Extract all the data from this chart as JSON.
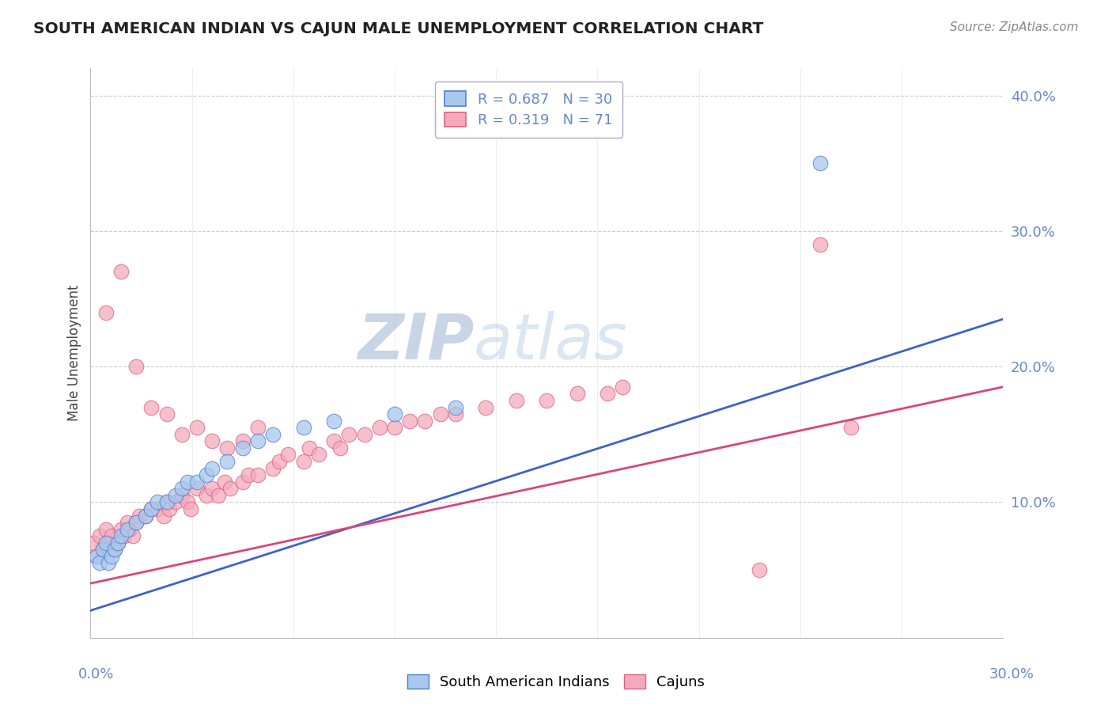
{
  "title": "SOUTH AMERICAN INDIAN VS CAJUN MALE UNEMPLOYMENT CORRELATION CHART",
  "source": "Source: ZipAtlas.com",
  "ylabel": "Male Unemployment",
  "xlim": [
    0.0,
    0.3
  ],
  "ylim": [
    0.0,
    0.42
  ],
  "ytick_vals": [
    0.1,
    0.2,
    0.3,
    0.4
  ],
  "ytick_labels": [
    "10.0%",
    "20.0%",
    "30.0%",
    "40.0%"
  ],
  "blue_R": 0.687,
  "blue_N": 30,
  "pink_R": 0.319,
  "pink_N": 71,
  "blue_fill": "#A8C8EE",
  "pink_fill": "#F4AABC",
  "blue_edge": "#5080CC",
  "pink_edge": "#E06080",
  "blue_line": "#4060CC",
  "pink_line": "#DD4477",
  "tick_color": "#6688CC",
  "legend_label_blue": "South American Indians",
  "legend_label_pink": "Cajuns",
  "blue_line_x": [
    0.0,
    0.3
  ],
  "blue_line_y": [
    0.02,
    0.235
  ],
  "pink_line_x": [
    0.0,
    0.3
  ],
  "pink_line_y": [
    0.04,
    0.185
  ],
  "blue_x": [
    0.002,
    0.003,
    0.004,
    0.005,
    0.006,
    0.007,
    0.008,
    0.009,
    0.01,
    0.012,
    0.015,
    0.018,
    0.02,
    0.022,
    0.025,
    0.028,
    0.03,
    0.032,
    0.035,
    0.038,
    0.04,
    0.045,
    0.05,
    0.055,
    0.06,
    0.07,
    0.08,
    0.1,
    0.12,
    0.24
  ],
  "blue_y": [
    0.06,
    0.055,
    0.065,
    0.07,
    0.055,
    0.06,
    0.065,
    0.07,
    0.075,
    0.08,
    0.085,
    0.09,
    0.095,
    0.1,
    0.1,
    0.105,
    0.11,
    0.115,
    0.115,
    0.12,
    0.125,
    0.13,
    0.14,
    0.145,
    0.15,
    0.155,
    0.16,
    0.165,
    0.17,
    0.35
  ],
  "pink_x": [
    0.001,
    0.002,
    0.003,
    0.004,
    0.005,
    0.006,
    0.007,
    0.008,
    0.009,
    0.01,
    0.011,
    0.012,
    0.013,
    0.014,
    0.015,
    0.016,
    0.018,
    0.02,
    0.022,
    0.024,
    0.025,
    0.026,
    0.028,
    0.03,
    0.032,
    0.033,
    0.035,
    0.038,
    0.04,
    0.042,
    0.044,
    0.046,
    0.05,
    0.052,
    0.055,
    0.06,
    0.062,
    0.065,
    0.07,
    0.072,
    0.075,
    0.08,
    0.082,
    0.085,
    0.09,
    0.095,
    0.1,
    0.105,
    0.11,
    0.115,
    0.12,
    0.13,
    0.14,
    0.15,
    0.16,
    0.17,
    0.175,
    0.005,
    0.01,
    0.015,
    0.02,
    0.025,
    0.03,
    0.035,
    0.04,
    0.045,
    0.05,
    0.055,
    0.22,
    0.24,
    0.25
  ],
  "pink_y": [
    0.07,
    0.06,
    0.075,
    0.065,
    0.08,
    0.07,
    0.075,
    0.065,
    0.07,
    0.08,
    0.075,
    0.085,
    0.08,
    0.075,
    0.085,
    0.09,
    0.09,
    0.095,
    0.095,
    0.09,
    0.1,
    0.095,
    0.1,
    0.105,
    0.1,
    0.095,
    0.11,
    0.105,
    0.11,
    0.105,
    0.115,
    0.11,
    0.115,
    0.12,
    0.12,
    0.125,
    0.13,
    0.135,
    0.13,
    0.14,
    0.135,
    0.145,
    0.14,
    0.15,
    0.15,
    0.155,
    0.155,
    0.16,
    0.16,
    0.165,
    0.165,
    0.17,
    0.175,
    0.175,
    0.18,
    0.18,
    0.185,
    0.24,
    0.27,
    0.2,
    0.17,
    0.165,
    0.15,
    0.155,
    0.145,
    0.14,
    0.145,
    0.155,
    0.05,
    0.29,
    0.155
  ]
}
